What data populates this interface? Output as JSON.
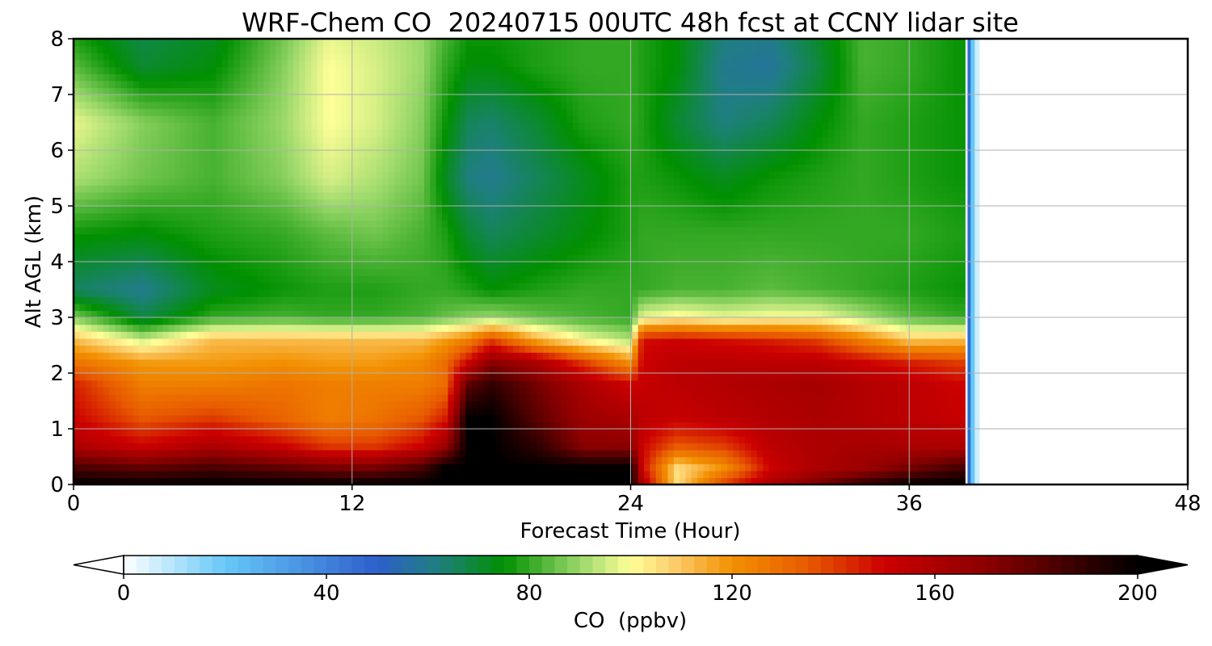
{
  "chart_data": {
    "type": "heatmap",
    "title": "WRF-Chem CO  20240715 00UTC 48h fcst at CCNY lidar site",
    "xlabel": "Forecast Time (Hour)",
    "ylabel": "Alt AGL (km)",
    "xlim": [
      0,
      48
    ],
    "ylim": [
      0,
      8
    ],
    "x_ticks": [
      0,
      12,
      24,
      36,
      48
    ],
    "y_ticks": [
      0,
      1,
      2,
      3,
      4,
      5,
      6,
      7,
      8
    ],
    "grid": true,
    "data_end_hour": 39,
    "x": [
      0,
      3,
      6,
      9,
      11,
      13,
      15,
      16,
      17,
      18,
      20,
      22,
      24,
      24.5,
      26,
      28,
      30,
      32,
      34,
      36,
      38,
      38.4
    ],
    "y": [
      0,
      0.3,
      0.7,
      1.2,
      1.8,
      2.2,
      2.6,
      3.0,
      3.5,
      4.5,
      5.5,
      6.5,
      7.5,
      8.0
    ],
    "z": [
      [
        200,
        200,
        200,
        200,
        200,
        200,
        200,
        200,
        200,
        200,
        200,
        200,
        200,
        160,
        105,
        140,
        160,
        175,
        190,
        200,
        200,
        200
      ],
      [
        185,
        180,
        185,
        180,
        175,
        175,
        185,
        200,
        200,
        200,
        200,
        200,
        200,
        150,
        105,
        120,
        150,
        160,
        165,
        175,
        185,
        185
      ],
      [
        160,
        150,
        160,
        150,
        140,
        140,
        150,
        165,
        200,
        200,
        190,
        170,
        170,
        150,
        135,
        140,
        155,
        160,
        162,
        160,
        160,
        160
      ],
      [
        150,
        135,
        140,
        132,
        125,
        128,
        135,
        145,
        200,
        200,
        180,
        165,
        160,
        155,
        152,
        155,
        158,
        160,
        158,
        155,
        152,
        152
      ],
      [
        145,
        125,
        125,
        128,
        125,
        125,
        125,
        130,
        180,
        190,
        175,
        160,
        150,
        152,
        155,
        158,
        160,
        162,
        158,
        155,
        150,
        150
      ],
      [
        128,
        118,
        118,
        120,
        118,
        118,
        122,
        130,
        150,
        170,
        160,
        140,
        120,
        150,
        155,
        155,
        155,
        155,
        150,
        145,
        140,
        140
      ],
      [
        112,
        95,
        112,
        112,
        112,
        112,
        112,
        118,
        125,
        140,
        115,
        100,
        92,
        148,
        150,
        148,
        145,
        140,
        125,
        110,
        112,
        112
      ],
      [
        88,
        68,
        80,
        82,
        80,
        80,
        82,
        85,
        88,
        90,
        85,
        82,
        80,
        98,
        102,
        98,
        100,
        100,
        92,
        84,
        80,
        80
      ],
      [
        65,
        60,
        72,
        76,
        78,
        78,
        80,
        80,
        78,
        75,
        78,
        80,
        80,
        80,
        82,
        82,
        84,
        82,
        80,
        78,
        76,
        76
      ],
      [
        76,
        74,
        78,
        80,
        84,
        86,
        82,
        78,
        70,
        66,
        70,
        74,
        78,
        80,
        80,
        80,
        80,
        80,
        80,
        80,
        78,
        78
      ],
      [
        92,
        86,
        82,
        88,
        96,
        92,
        86,
        72,
        62,
        60,
        66,
        72,
        78,
        78,
        76,
        72,
        76,
        78,
        80,
        78,
        76,
        76
      ],
      [
        98,
        88,
        82,
        90,
        100,
        96,
        88,
        76,
        66,
        64,
        70,
        78,
        80,
        78,
        70,
        62,
        66,
        74,
        80,
        78,
        76,
        76
      ],
      [
        84,
        70,
        74,
        88,
        100,
        96,
        90,
        80,
        74,
        74,
        78,
        80,
        80,
        78,
        74,
        60,
        58,
        68,
        82,
        80,
        76,
        76
      ],
      [
        78,
        68,
        72,
        86,
        98,
        95,
        90,
        82,
        76,
        76,
        78,
        80,
        80,
        78,
        74,
        62,
        60,
        70,
        82,
        80,
        76,
        76
      ]
    ],
    "colorbar": {
      "label": "CO  (ppbv)",
      "range": [
        0,
        200
      ],
      "ticks": [
        0,
        40,
        80,
        120,
        160,
        200
      ],
      "extend": "both",
      "stops": [
        {
          "v": 0,
          "c": "#ffffff"
        },
        {
          "v": 20,
          "c": "#66c8f8"
        },
        {
          "v": 50,
          "c": "#2e5fcc"
        },
        {
          "v": 62,
          "c": "#1f7f7f"
        },
        {
          "v": 75,
          "c": "#009000"
        },
        {
          "v": 90,
          "c": "#9ad86a"
        },
        {
          "v": 100,
          "c": "#ffff98"
        },
        {
          "v": 108,
          "c": "#fcd070"
        },
        {
          "v": 120,
          "c": "#f29000"
        },
        {
          "v": 135,
          "c": "#e85a00"
        },
        {
          "v": 150,
          "c": "#cc0000"
        },
        {
          "v": 170,
          "c": "#8c0000"
        },
        {
          "v": 200,
          "c": "#000000"
        }
      ]
    }
  }
}
